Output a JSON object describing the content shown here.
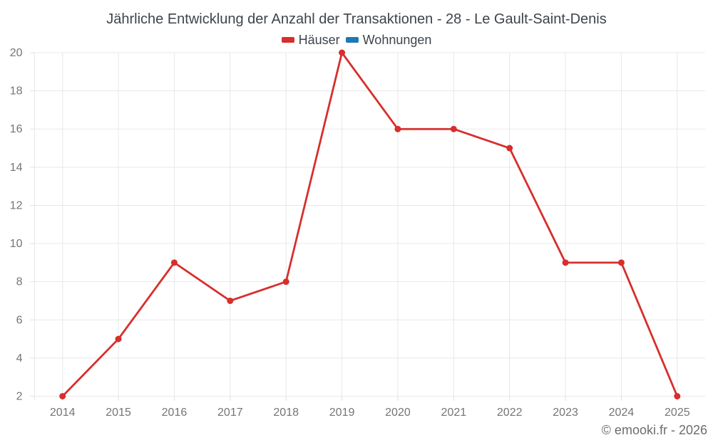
{
  "chart_data": {
    "type": "line",
    "title": "Jährliche Entwicklung der Anzahl der Transaktionen - 28 - Le Gault-Saint-Denis",
    "categories": [
      "2014",
      "2015",
      "2016",
      "2017",
      "2018",
      "2019",
      "2020",
      "2021",
      "2022",
      "2023",
      "2024",
      "2025"
    ],
    "series": [
      {
        "name": "Häuser",
        "color": "#d62f2c",
        "values": [
          2,
          5,
          9,
          7,
          8,
          20,
          16,
          16,
          15,
          9,
          9,
          2
        ]
      },
      {
        "name": "Wohnungen",
        "color": "#1f77b4",
        "values": []
      }
    ],
    "xlabel": "",
    "ylabel": "",
    "ylim": [
      2,
      20
    ],
    "ytick_step": 2,
    "grid": true,
    "legend_position": "top",
    "marker": "circle"
  },
  "footer": {
    "text": "© emooki.fr - 2026"
  },
  "style": {
    "background": "#ffffff",
    "grid_color": "#e8e8e8",
    "tick_mark_color": "#dedede",
    "axis_text_color": "#757575",
    "title_color": "#3e444b",
    "footer_color": "#6d6d6d"
  }
}
